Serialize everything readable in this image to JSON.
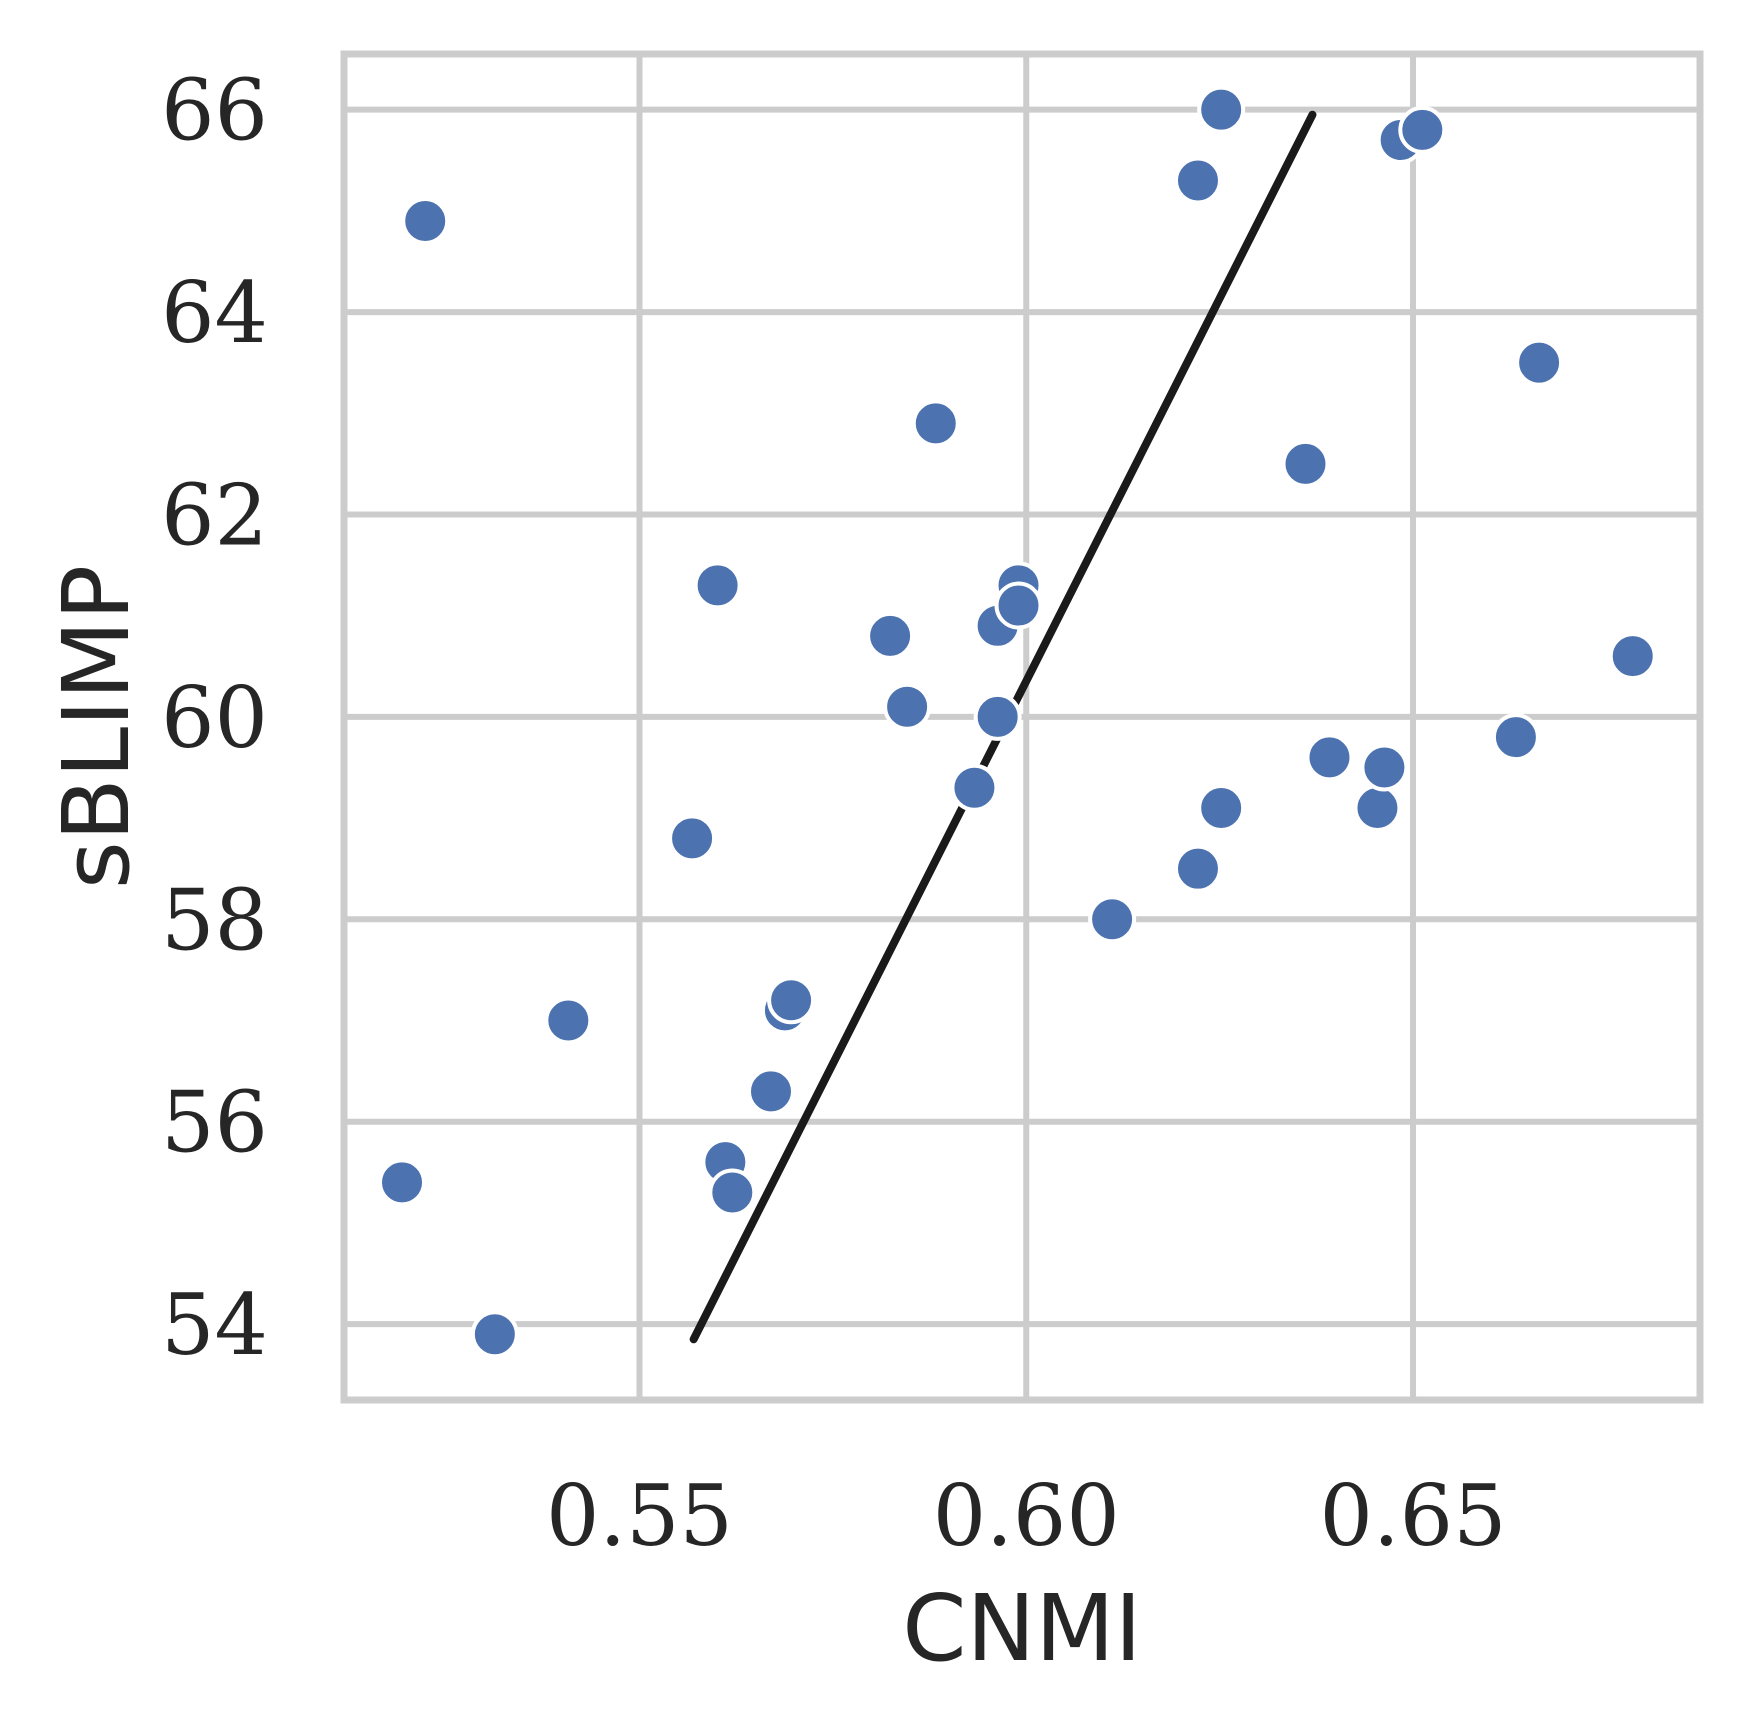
{
  "chart_data": {
    "type": "scatter",
    "xlabel": "CNMI",
    "ylabel": "sBLIMP",
    "xlim": [
      0.5118,
      0.6871
    ],
    "ylim": [
      53.25,
      66.55
    ],
    "x_ticks": [
      0.55,
      0.6,
      0.65
    ],
    "x_tick_labels": [
      "0.55",
      "0.60",
      "0.65"
    ],
    "y_ticks": [
      54,
      56,
      58,
      60,
      62,
      64,
      66
    ],
    "y_tick_labels": [
      "54",
      "56",
      "58",
      "60",
      "62",
      "64",
      "66"
    ],
    "grid": true,
    "legend": "none",
    "point_color": "#4c72b0",
    "trend_line_color": "#1a1a1a",
    "points": [
      {
        "x": 0.5223,
        "y": 64.9
      },
      {
        "x": 0.5193,
        "y": 55.4
      },
      {
        "x": 0.5313,
        "y": 53.9
      },
      {
        "x": 0.5408,
        "y": 57.0
      },
      {
        "x": 0.5568,
        "y": 58.8
      },
      {
        "x": 0.5601,
        "y": 61.3
      },
      {
        "x": 0.5611,
        "y": 55.6
      },
      {
        "x": 0.562,
        "y": 55.3
      },
      {
        "x": 0.567,
        "y": 56.3
      },
      {
        "x": 0.5688,
        "y": 57.1
      },
      {
        "x": 0.5696,
        "y": 57.2
      },
      {
        "x": 0.5824,
        "y": 60.8
      },
      {
        "x": 0.5846,
        "y": 60.1
      },
      {
        "x": 0.5883,
        "y": 62.9
      },
      {
        "x": 0.5933,
        "y": 59.3
      },
      {
        "x": 0.5963,
        "y": 60.0
      },
      {
        "x": 0.5963,
        "y": 60.9
      },
      {
        "x": 0.599,
        "y": 61.3
      },
      {
        "x": 0.599,
        "y": 61.1
      },
      {
        "x": 0.6111,
        "y": 58.0
      },
      {
        "x": 0.6222,
        "y": 58.5
      },
      {
        "x": 0.6222,
        "y": 65.3
      },
      {
        "x": 0.6252,
        "y": 59.1
      },
      {
        "x": 0.6252,
        "y": 66.0
      },
      {
        "x": 0.6361,
        "y": 62.5
      },
      {
        "x": 0.6392,
        "y": 59.6
      },
      {
        "x": 0.6454,
        "y": 59.1
      },
      {
        "x": 0.6463,
        "y": 59.5
      },
      {
        "x": 0.6484,
        "y": 65.7
      },
      {
        "x": 0.6512,
        "y": 65.8
      },
      {
        "x": 0.6633,
        "y": 59.8
      },
      {
        "x": 0.6663,
        "y": 63.5
      },
      {
        "x": 0.6784,
        "y": 60.6
      }
    ],
    "trend_line": {
      "x": [
        0.557,
        0.637
      ],
      "y": [
        53.85,
        65.95
      ]
    }
  }
}
